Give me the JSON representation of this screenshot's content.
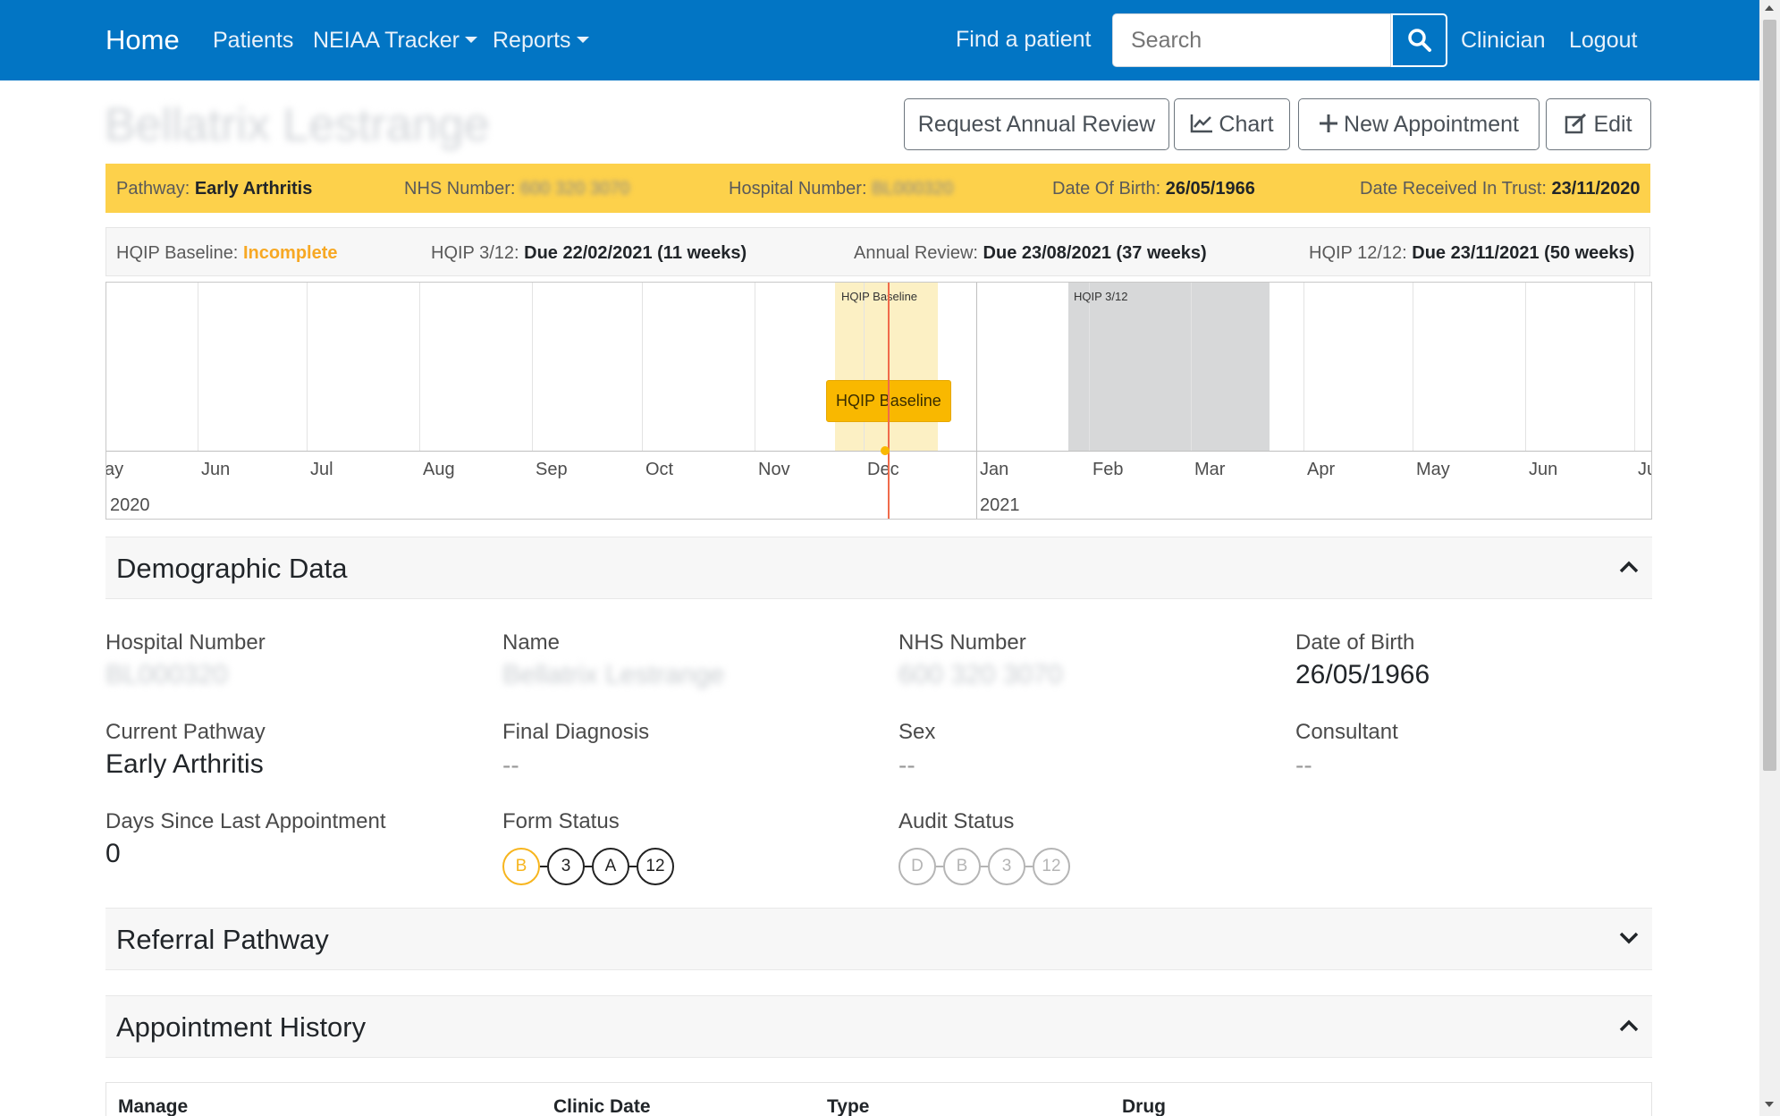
{
  "navbar": {
    "home": "Home",
    "patients": "Patients",
    "tracker": "NEIAA Tracker",
    "reports": "Reports",
    "find_patient": "Find a patient",
    "search_placeholder": "Search",
    "clinician": "Clinician",
    "logout": "Logout"
  },
  "patient": {
    "name": "Bellatrix Lestrange",
    "actions": {
      "request_review": "Request Annual Review",
      "chart": "Chart",
      "new_appointment": "New Appointment",
      "edit": "Edit"
    }
  },
  "info_bar": {
    "pathway_label": "Pathway:",
    "pathway_value": "Early Arthritis",
    "nhs_label": "NHS Number:",
    "nhs_value": "600 320 3070",
    "hospital_label": "Hospital Number:",
    "hospital_value": "BL000320",
    "dob_label": "Date Of Birth:",
    "dob_value": "26/05/1966",
    "received_label": "Date Received In Trust:",
    "received_value": "23/11/2020"
  },
  "hqip_bar": {
    "baseline_label": "HQIP Baseline:",
    "baseline_value": "Incomplete",
    "three_label": "HQIP 3/12:",
    "three_value": "Due 22/02/2021 (11 weeks)",
    "annual_label": "Annual Review:",
    "annual_value": "Due 23/08/2021 (37 weeks)",
    "twelve_label": "HQIP 12/12:",
    "twelve_value": "Due 23/11/2021 (50 weeks)"
  },
  "timeline": {
    "months": [
      "ay",
      "Jun",
      "Jul",
      "Aug",
      "Sep",
      "Oct",
      "Nov",
      "Dec",
      "Jan",
      "Feb",
      "Mar",
      "Apr",
      "May",
      "Jun",
      "Ju"
    ],
    "years": [
      "2020",
      "2021"
    ],
    "band_baseline": "HQIP Baseline",
    "band_three": "HQIP 3/12",
    "item_baseline": "HQIP Baseline",
    "colors": {
      "item": "#f9b800",
      "now_line": "#f06b4b",
      "band_yellow": "#fcf0c4",
      "band_grey": "#d7d8d9"
    }
  },
  "demographics": {
    "title": "Demographic Data",
    "hospital_number_label": "Hospital Number",
    "hospital_number_value": "BL000320",
    "name_label": "Name",
    "name_value": "Bellatrix Lestrange",
    "nhs_label": "NHS Number",
    "nhs_value": "600 320 3070",
    "dob_label": "Date of Birth",
    "dob_value": "26/05/1966",
    "pathway_label": "Current Pathway",
    "pathway_value": "Early Arthritis",
    "diagnosis_label": "Final Diagnosis",
    "diagnosis_value": "--",
    "sex_label": "Sex",
    "sex_value": "--",
    "consultant_label": "Consultant",
    "consultant_value": "--",
    "days_label": "Days Since Last Appointment",
    "days_value": "0",
    "form_status_label": "Form Status",
    "form_status": [
      "B",
      "3",
      "A",
      "12"
    ],
    "audit_status_label": "Audit Status",
    "audit_status": [
      "D",
      "B",
      "3",
      "12"
    ]
  },
  "referral": {
    "title": "Referral Pathway"
  },
  "appointments": {
    "title": "Appointment History",
    "columns": [
      "Manage",
      "Clinic Date",
      "Type",
      "Drug"
    ]
  }
}
